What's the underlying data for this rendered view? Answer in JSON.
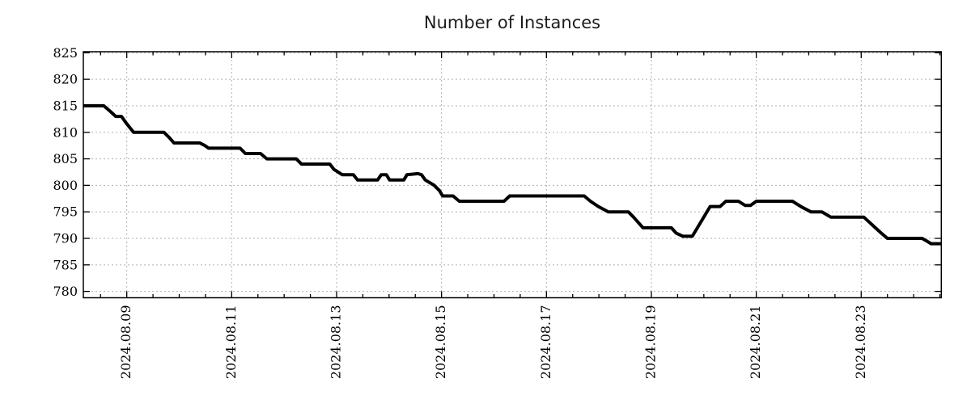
{
  "title": "Number of Instances",
  "colors": {
    "line": "#000000",
    "grid": "#b0b0b0",
    "axis": "#000000",
    "background": "#ffffff",
    "text": "#1c1c1c"
  },
  "chart_data": {
    "type": "line",
    "title": "Number of Instances",
    "xlabel": "",
    "ylabel": "",
    "grid": true,
    "legend": "none",
    "x_axis": {
      "unit": "date",
      "epoch_day0": "2024.08.08",
      "range_days": [
        0.172,
        16.527
      ],
      "major_ticks_days": [
        1,
        3,
        5,
        7,
        9,
        11,
        13,
        15
      ],
      "tick_labels": [
        "2024.08.09",
        "2024.08.11",
        "2024.08.13",
        "2024.08.15",
        "2024.08.17",
        "2024.08.19",
        "2024.08.21",
        "2024.08.23"
      ],
      "minor_tick_interval_days": 0.5
    },
    "y_axis": {
      "range": [
        778.8,
        825.2
      ],
      "ticks": [
        780,
        785,
        790,
        795,
        800,
        805,
        810,
        815,
        820,
        825
      ]
    },
    "series": [
      {
        "name": "instances",
        "color": "#000000",
        "line_width": 4,
        "points_day_value": [
          [
            0.17,
            815
          ],
          [
            0.56,
            815
          ],
          [
            0.68,
            814
          ],
          [
            0.79,
            813
          ],
          [
            0.9,
            813
          ],
          [
            0.97,
            812
          ],
          [
            1.05,
            811
          ],
          [
            1.13,
            810
          ],
          [
            1.71,
            810
          ],
          [
            1.81,
            809
          ],
          [
            1.9,
            808
          ],
          [
            2.39,
            808
          ],
          [
            2.49,
            807.5
          ],
          [
            2.56,
            807
          ],
          [
            3.16,
            807
          ],
          [
            3.26,
            806
          ],
          [
            3.55,
            806
          ],
          [
            3.67,
            805
          ],
          [
            4.23,
            805
          ],
          [
            4.33,
            804
          ],
          [
            4.87,
            804
          ],
          [
            4.95,
            803
          ],
          [
            5.11,
            802
          ],
          [
            5.32,
            802
          ],
          [
            5.4,
            801
          ],
          [
            5.78,
            801
          ],
          [
            5.85,
            802
          ],
          [
            5.95,
            802
          ],
          [
            6.01,
            801
          ],
          [
            6.28,
            801
          ],
          [
            6.34,
            802
          ],
          [
            6.55,
            802.2
          ],
          [
            6.62,
            802
          ],
          [
            6.69,
            801
          ],
          [
            6.86,
            800
          ],
          [
            6.96,
            799
          ],
          [
            7.02,
            798
          ],
          [
            7.22,
            798
          ],
          [
            7.34,
            797
          ],
          [
            8.19,
            797
          ],
          [
            8.3,
            798
          ],
          [
            9.72,
            798
          ],
          [
            9.84,
            797
          ],
          [
            9.99,
            796
          ],
          [
            10.18,
            795
          ],
          [
            10.56,
            795
          ],
          [
            10.66,
            794
          ],
          [
            10.75,
            793
          ],
          [
            10.84,
            792
          ],
          [
            11.38,
            792
          ],
          [
            11.47,
            791
          ],
          [
            11.6,
            790.4
          ],
          [
            11.78,
            790.4
          ],
          [
            12.12,
            796
          ],
          [
            12.31,
            796
          ],
          [
            12.42,
            797
          ],
          [
            12.66,
            797
          ],
          [
            12.79,
            796.2
          ],
          [
            12.89,
            796.2
          ],
          [
            13.0,
            797
          ],
          [
            13.69,
            797
          ],
          [
            13.85,
            796
          ],
          [
            14.04,
            795
          ],
          [
            14.25,
            795
          ],
          [
            14.42,
            794
          ],
          [
            15.05,
            794
          ],
          [
            15.16,
            793
          ],
          [
            15.27,
            792
          ],
          [
            15.38,
            791
          ],
          [
            15.5,
            790
          ],
          [
            16.16,
            790
          ],
          [
            16.25,
            789.5
          ],
          [
            16.33,
            789
          ],
          [
            16.52,
            789
          ]
        ]
      }
    ]
  }
}
